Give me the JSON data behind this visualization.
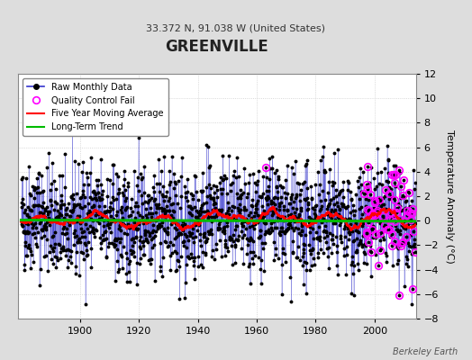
{
  "title": "GREENVILLE",
  "subtitle": "33.372 N, 91.038 W (United States)",
  "ylabel": "Temperature Anomaly (°C)",
  "credit": "Berkeley Earth",
  "year_start": 1880,
  "year_end": 2013,
  "ylim": [
    -8,
    12
  ],
  "yticks": [
    -8,
    -6,
    -4,
    -2,
    0,
    2,
    4,
    6,
    8,
    10,
    12
  ],
  "xticks": [
    1900,
    1920,
    1940,
    1960,
    1980,
    2000
  ],
  "bg_color": "#dddddd",
  "plot_bg_color": "#ffffff",
  "line_color_raw": "#3333cc",
  "dot_color_raw": "#000000",
  "ma_color": "#ff0000",
  "trend_color": "#00bb00",
  "qc_color": "#ff00ff",
  "seed": 42
}
